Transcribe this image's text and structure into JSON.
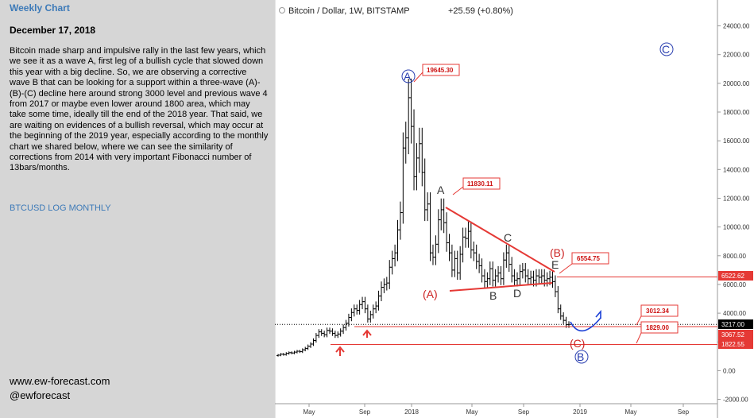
{
  "sidebar": {
    "title": "Weekly Chart",
    "date": "December 17, 2018",
    "body": "Bitcoin made sharp and impulsive rally in the last few years, which we see it as a wave A, first leg of a bullish cycle that slowed down this year with a big decline. So, we are observing a corrective wave B that can be looking for a support within a three-wave (A)-(B)-(C) decline here around strong 3000 level and previous wave 4 from 2017 or maybe even lower around 1800 area, which may take some time, ideally till the end of the 2018 year. That said, we are waiting on evidences of a bullish reversal, which may occur at the beginning of the 2019 year, especially according to the monthly chart we shared below, where we can see the similarity of corrections from 2014 with very important Fibonacci number of 13bars/months.",
    "link": "BTCUSD LOG MONTHLY",
    "website": "www.ew-forecast.com",
    "handle": "@ewforecast"
  },
  "chart_header": {
    "symbol": "Bitcoin / Dollar, 1W, BITSTAMP",
    "change": "+25.59 (+0.80%)"
  },
  "chart_data": {
    "type": "candlestick",
    "title": "Bitcoin / Dollar, 1W, BITSTAMP",
    "x_ticks": [
      "May",
      "Sep",
      "2018",
      "May",
      "Sep",
      "2019",
      "May",
      "Sep"
    ],
    "y_ticks": [
      24000,
      22000,
      20000,
      18000,
      16000,
      14000,
      12000,
      10000,
      8000,
      6000,
      4000,
      2000,
      0,
      -2000
    ],
    "y_tick_labels": [
      "24000.00",
      "22000.00",
      "20000.00",
      "18000.00",
      "16000.00",
      "14000.00",
      "12000.00",
      "10000.00",
      "8000.00",
      "6000.00",
      "4000.00",
      "2000.00",
      "0.00",
      "-2000.00"
    ],
    "ylim": [
      -2300,
      25800
    ],
    "closes": [
      1080,
      1150,
      1120,
      1200,
      1250,
      1230,
      1290,
      1350,
      1320,
      1450,
      1550,
      1700,
      1850,
      2100,
      2450,
      2700,
      2600,
      2500,
      2800,
      2750,
      2600,
      2450,
      2550,
      2750,
      3000,
      3300,
      3700,
      4050,
      4300,
      4200,
      4600,
      4800,
      4300,
      3600,
      3900,
      4300,
      4500,
      5200,
      5800,
      6000,
      6100,
      7200,
      7800,
      8200,
      9800,
      11000,
      15500,
      16200,
      19000,
      17000,
      13500,
      14800,
      15800,
      13800,
      11200,
      11600,
      8200,
      7900,
      8800,
      10500,
      11200,
      10300,
      8900,
      8200,
      7000,
      7800,
      6800,
      8100,
      9300,
      9200,
      9700,
      8400,
      8200,
      7600,
      7300,
      6600,
      6200,
      6400,
      7100,
      6300,
      6600,
      6800,
      6400,
      7700,
      8200,
      7400,
      6600,
      6300,
      6400,
      6900,
      7000,
      6600,
      6400,
      6500,
      6300,
      6600,
      6500,
      6600,
      6300,
      6400,
      6500,
      6200,
      5500,
      4300,
      3800,
      3500,
      3200,
      3217
    ],
    "annotations": [
      {
        "label": "19645.30",
        "price": 19645.3
      },
      {
        "label": "11830.11",
        "price": 11830.11
      },
      {
        "label": "6554.75",
        "price": 6554.75
      },
      {
        "label": "3012.34",
        "price": 3012.34
      },
      {
        "label": "1829.00",
        "price": 1829.0
      }
    ],
    "price_levels": [
      {
        "label": "6522.62",
        "price": 6522.62
      },
      {
        "label": "3217.00",
        "price": 3217.0
      },
      {
        "label": "3067.52",
        "price": 3067.52
      },
      {
        "label": "1822.55",
        "price": 1822.55
      }
    ],
    "wave_labels": [
      "A",
      "C",
      "A",
      "C",
      "(B)",
      "E",
      "(A)",
      "B",
      "D",
      "(C)",
      "B"
    ]
  },
  "colors": {
    "sidebar_bg": "#d6d6d6",
    "accent_blue": "#3d7ab8",
    "wave_red": "#cc2222",
    "wave_blue": "#2a3fb0",
    "level_red": "#e53935",
    "current_price": "#000000"
  }
}
